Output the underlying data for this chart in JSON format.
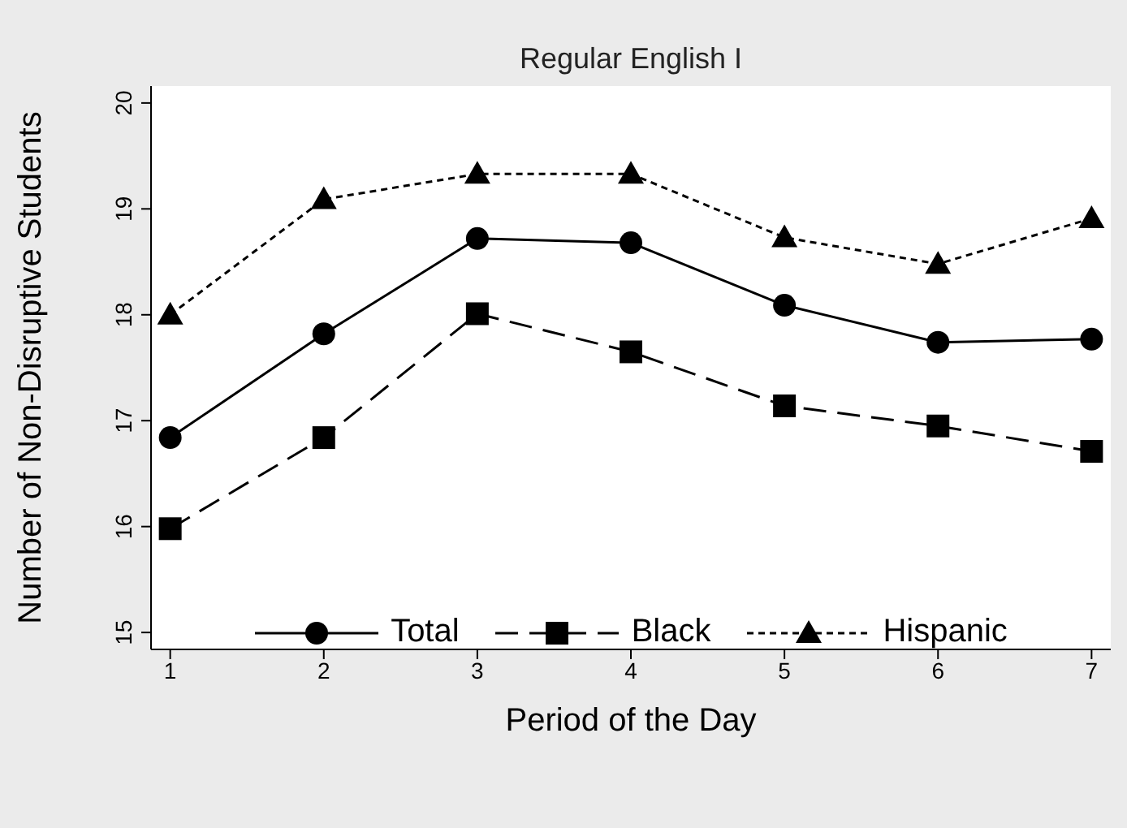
{
  "chart_data": {
    "type": "line",
    "title": "Regular English I",
    "xlabel": "Period of the Day",
    "ylabel": "Number of Non-Disruptive Students",
    "x": [
      1,
      2,
      3,
      4,
      5,
      6,
      7
    ],
    "series": [
      {
        "name": "Total",
        "color": "#000000",
        "marker": "circle",
        "line_style": "solid",
        "values": [
          16.84,
          17.82,
          18.72,
          18.68,
          18.09,
          17.74,
          17.77
        ]
      },
      {
        "name": "Black",
        "color": "#000000",
        "marker": "square",
        "line_style": "dashed",
        "values": [
          15.98,
          16.84,
          18.01,
          17.65,
          17.14,
          16.95,
          16.71
        ]
      },
      {
        "name": "Hispanic",
        "color": "#000000",
        "marker": "triangle",
        "line_style": "dotted",
        "values": [
          18.0,
          19.09,
          19.33,
          19.33,
          18.73,
          18.48,
          18.91
        ]
      }
    ],
    "xlim": [
      0.875,
      7.125
    ],
    "xticks": [
      1,
      2,
      3,
      4,
      5,
      6,
      7
    ],
    "ylim": [
      14.84,
      20.16
    ],
    "yticks": [
      15,
      16,
      17,
      18,
      19,
      20
    ],
    "legend": "bottom"
  }
}
